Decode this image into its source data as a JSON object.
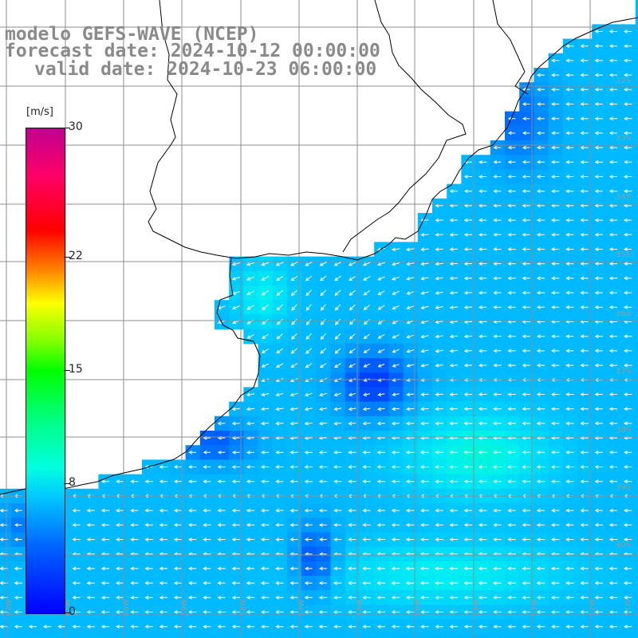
{
  "title": {
    "line1": "modelo GEFS-WAVE (NCEP)",
    "line2": "forecast date: 2024-10-12 00:00:00",
    "line3": "valid date: 2024-10-23 06:00:00"
  },
  "colorbar": {
    "unit": "[m/s]",
    "ticks": [
      "30",
      "22",
      "15",
      "8",
      "0"
    ],
    "tick_values": [
      30,
      22,
      15,
      8,
      0
    ],
    "range": [
      0,
      30
    ]
  },
  "latitude_labels": [
    "32S",
    "33S",
    "34S",
    "35S",
    "36S",
    "37S",
    "38S",
    "39S",
    "40S"
  ],
  "longitude_labels": [
    "62W",
    "61W",
    "60W",
    "59W",
    "58W",
    "57W",
    "56W",
    "55W",
    "54W",
    "53W",
    "52W",
    "51W"
  ],
  "colors": {
    "land": "#ffffff",
    "coastline": "#000000",
    "grid": "#888888",
    "arrows": "#ffffff",
    "label_gray": "#8a8a8a"
  }
}
